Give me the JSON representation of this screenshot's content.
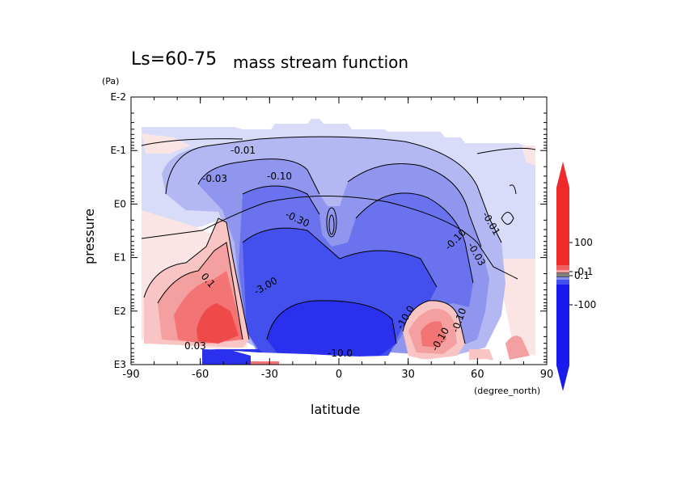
{
  "chart_data": {
    "type": "heatmap",
    "title_prefix": "Ls=60-75",
    "title": "mass stream function",
    "xlabel": "latitude",
    "ylabel": "pressure",
    "yunit": "(Pa)",
    "xunit": "(degree_north)",
    "xlim": [
      -90,
      90
    ],
    "x_ticks": [
      "-90",
      "-60",
      "-30",
      "0",
      "30",
      "60",
      "90"
    ],
    "y_ticks": [
      "E-2",
      "E-1",
      "E0",
      "E1",
      "E2",
      "E3"
    ],
    "y_scale": "log",
    "colorbar": {
      "ticks": [
        "100",
        "0.1",
        "-0.1",
        "-100"
      ],
      "positive_color": "#ee2020",
      "negative_color": "#1a1aee"
    },
    "contour_labels": [
      "-0.01",
      "-0.03",
      "-0.10",
      "-0.30",
      "-3.00",
      "-10.0",
      "-0.03",
      "-0.10",
      "-0.01",
      "0.1",
      "0.03",
      "-10.0",
      "-0.10",
      "-0.10"
    ],
    "colors": {
      "neg_1": "#d8dcf8",
      "neg_2": "#b4b8f2",
      "neg_3": "#9096ee",
      "neg_4": "#6a72ee",
      "neg_5": "#4450ee",
      "neg_6": "#2a30ee",
      "pos_1": "#fbe4e4",
      "pos_2": "#f8c4c4",
      "pos_3": "#f5a0a0",
      "pos_4": "#f27474",
      "pos_5": "#ee4a4a"
    }
  }
}
